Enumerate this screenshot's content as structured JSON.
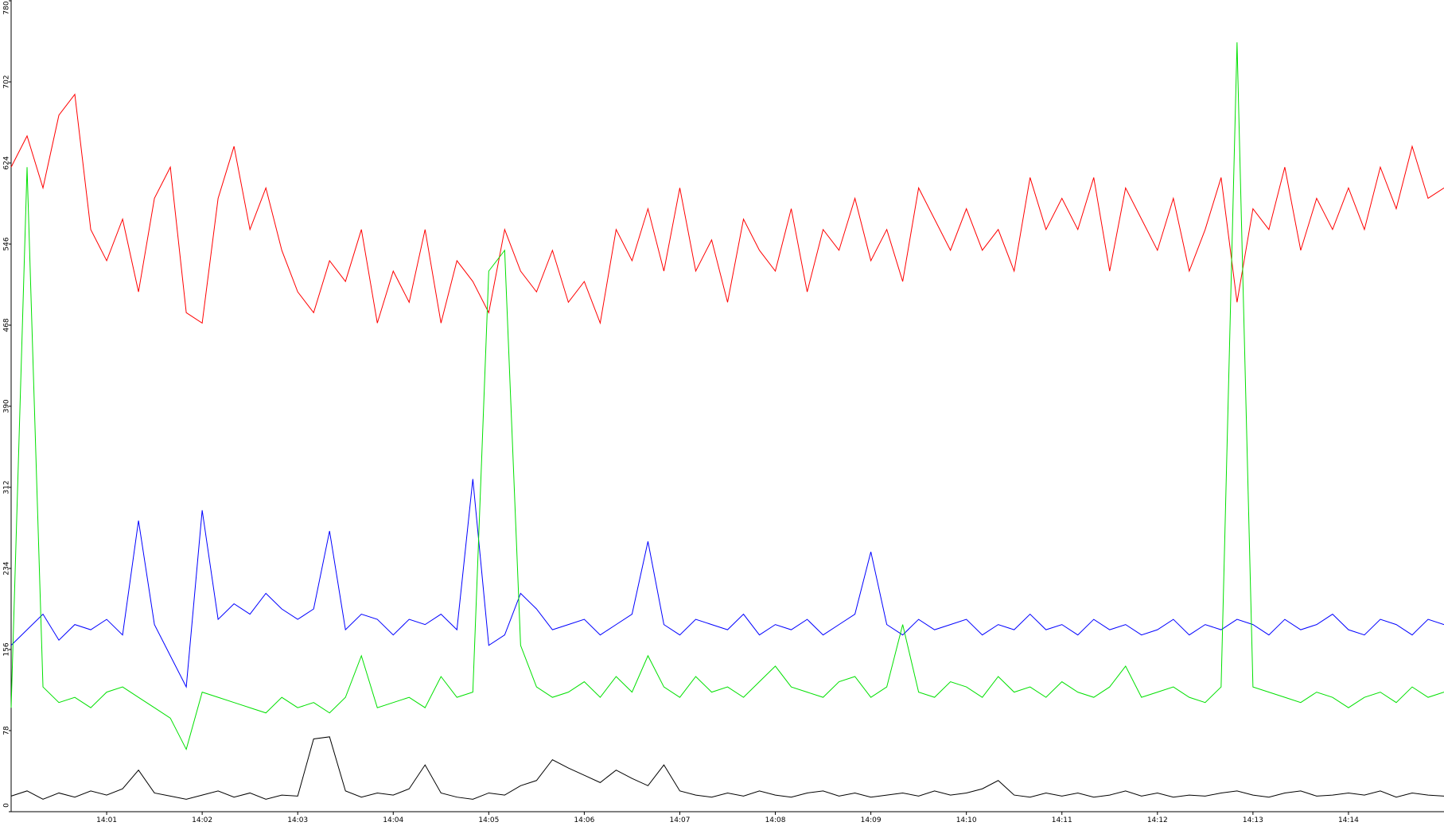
{
  "chart_data": {
    "type": "line",
    "categories": [
      null,
      null,
      null,
      null,
      null,
      null,
      "14:01",
      null,
      null,
      null,
      null,
      null,
      "14:02",
      null,
      null,
      null,
      null,
      null,
      "14:03",
      null,
      null,
      null,
      null,
      null,
      "14:04",
      null,
      null,
      null,
      null,
      null,
      "14:05",
      null,
      null,
      null,
      null,
      null,
      "14:06",
      null,
      null,
      null,
      null,
      null,
      "14:07",
      null,
      null,
      null,
      null,
      null,
      "14:08",
      null,
      null,
      null,
      null,
      null,
      "14:09",
      null,
      null,
      null,
      null,
      null,
      "14:10",
      null,
      null,
      null,
      null,
      null,
      "14:11",
      null,
      null,
      null,
      null,
      null,
      "14:12",
      null,
      null,
      null,
      null,
      null,
      "14:13",
      null,
      null,
      null,
      null,
      null,
      "14:14",
      null,
      null,
      null,
      null,
      null,
      null
    ],
    "series": [
      {
        "color": "#ff0000",
        "values": [
          620,
          650,
          600,
          670,
          690,
          560,
          530,
          570,
          500,
          590,
          620,
          480,
          470,
          590,
          640,
          560,
          600,
          540,
          500,
          480,
          530,
          510,
          560,
          470,
          520,
          490,
          560,
          470,
          530,
          510,
          480,
          560,
          520,
          500,
          540,
          490,
          510,
          470,
          560,
          530,
          580,
          520,
          600,
          520,
          550,
          490,
          570,
          540,
          520,
          580,
          500,
          560,
          540,
          590,
          530,
          560,
          510,
          600,
          570,
          540,
          580,
          540,
          560,
          520,
          610,
          560,
          590,
          560,
          610,
          520,
          600,
          570,
          540,
          590,
          520,
          560,
          610,
          490,
          580,
          560,
          620,
          540,
          590,
          560,
          600,
          560,
          620,
          580,
          640,
          590,
          600
        ]
      },
      {
        "color": "#0000ff",
        "values": [
          160,
          175,
          190,
          165,
          180,
          175,
          185,
          170,
          280,
          180,
          150,
          120,
          290,
          185,
          200,
          190,
          210,
          195,
          185,
          195,
          270,
          175,
          190,
          185,
          170,
          185,
          180,
          190,
          175,
          320,
          160,
          170,
          210,
          195,
          175,
          180,
          185,
          170,
          180,
          190,
          260,
          180,
          170,
          185,
          180,
          175,
          190,
          170,
          180,
          175,
          185,
          170,
          180,
          190,
          250,
          180,
          170,
          185,
          175,
          180,
          185,
          170,
          180,
          175,
          190,
          175,
          180,
          170,
          185,
          175,
          180,
          170,
          175,
          185,
          170,
          180,
          175,
          185,
          180,
          170,
          185,
          175,
          180,
          190,
          175,
          170,
          185,
          180,
          170,
          185,
          180
        ]
      },
      {
        "color": "#00e000",
        "values": [
          100,
          620,
          120,
          105,
          110,
          100,
          115,
          120,
          110,
          100,
          90,
          60,
          115,
          110,
          105,
          100,
          95,
          110,
          100,
          105,
          95,
          110,
          150,
          100,
          105,
          110,
          100,
          130,
          110,
          115,
          520,
          540,
          160,
          120,
          110,
          115,
          125,
          110,
          130,
          115,
          150,
          120,
          110,
          130,
          115,
          120,
          110,
          125,
          140,
          120,
          115,
          110,
          125,
          130,
          110,
          120,
          180,
          115,
          110,
          125,
          120,
          110,
          130,
          115,
          120,
          110,
          125,
          115,
          110,
          120,
          140,
          110,
          115,
          120,
          110,
          105,
          120,
          740,
          120,
          115,
          110,
          105,
          115,
          110,
          100,
          110,
          115,
          105,
          120,
          110,
          115
        ]
      },
      {
        "color": "#000000",
        "values": [
          15,
          20,
          12,
          18,
          14,
          20,
          16,
          22,
          40,
          18,
          15,
          12,
          16,
          20,
          14,
          18,
          12,
          16,
          15,
          70,
          72,
          20,
          14,
          18,
          16,
          22,
          45,
          18,
          14,
          12,
          18,
          16,
          25,
          30,
          50,
          42,
          35,
          28,
          40,
          32,
          25,
          45,
          20,
          16,
          14,
          18,
          15,
          20,
          16,
          14,
          18,
          20,
          15,
          18,
          14,
          16,
          18,
          15,
          20,
          16,
          18,
          22,
          30,
          16,
          14,
          18,
          15,
          18,
          14,
          16,
          20,
          15,
          18,
          14,
          16,
          15,
          18,
          20,
          16,
          14,
          18,
          20,
          15,
          16,
          18,
          16,
          20,
          14,
          18,
          16,
          15
        ]
      }
    ],
    "ylim": [
      0,
      780
    ],
    "yticks": [
      0,
      78,
      156,
      234,
      312,
      390,
      468,
      546,
      624,
      702,
      780
    ]
  }
}
